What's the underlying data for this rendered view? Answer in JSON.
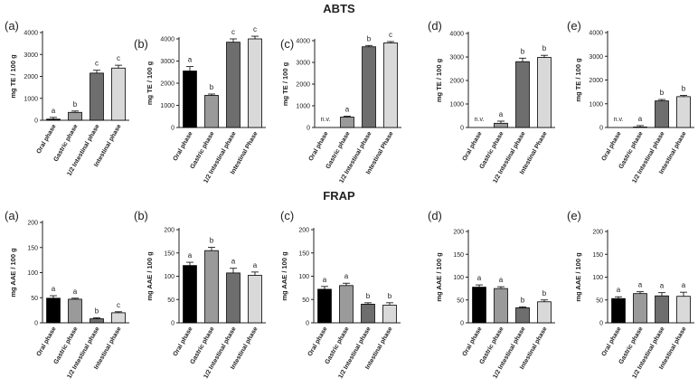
{
  "sections": {
    "abts_title": "ABTS",
    "frap_title": "FRAP"
  },
  "colors": {
    "oral": "#000000",
    "gastric": "#9a9a9a",
    "half_intestinal": "#6e6e6e",
    "intestinal": "#d9d9d9",
    "axis": "#222222"
  },
  "chart_data": [
    {
      "type": "bar",
      "section": "ABTS",
      "panel": "(a)",
      "ylabel": "mg TE / 100 g",
      "ylim": [
        0,
        4000
      ],
      "yticks": [
        0,
        1000,
        2000,
        3000,
        4000
      ],
      "categories": [
        "Oral phase",
        "Gastric phase",
        "1/2 Intestinal phase",
        "Intestinal phase"
      ],
      "values": [
        50,
        360,
        2150,
        2380
      ],
      "errors": [
        80,
        60,
        130,
        130
      ],
      "labels": [
        "a",
        "b",
        "c",
        "c"
      ],
      "missing": []
    },
    {
      "type": "bar",
      "section": "ABTS",
      "panel": "(b)",
      "ylabel": "mg TE / 100 g",
      "ylim": [
        0,
        4000
      ],
      "yticks": [
        0,
        1000,
        2000,
        3000,
        4000
      ],
      "categories": [
        "Oral phase",
        "Gastric phase",
        "1/2 Intestinal phase",
        "Intestinal Phase"
      ],
      "values": [
        2550,
        1450,
        3850,
        4000
      ],
      "errors": [
        200,
        60,
        150,
        120
      ],
      "labels": [
        "a",
        "b",
        "c",
        "c"
      ],
      "missing": []
    },
    {
      "type": "bar",
      "section": "ABTS",
      "panel": "(c)",
      "ylabel": "mg TE / 100 g",
      "ylim": [
        0,
        4000
      ],
      "yticks": [
        0,
        1000,
        2000,
        3000,
        4000
      ],
      "categories": [
        "Oral phase",
        "Gastric phase",
        "1/2 Intestinal phase",
        "Intestinal Phase"
      ],
      "values": [
        0,
        480,
        3720,
        3900
      ],
      "errors": [
        0,
        40,
        60,
        60
      ],
      "labels": [
        "n.v.",
        "a",
        "b",
        "c"
      ],
      "missing": [
        0
      ]
    },
    {
      "type": "bar",
      "section": "ABTS",
      "panel": "(d)",
      "ylabel": "mg TE / 100 g",
      "ylim": [
        0,
        4000
      ],
      "yticks": [
        0,
        1000,
        2000,
        3000,
        4000
      ],
      "categories": [
        "Oral phase",
        "Gastric phase",
        "1/2 Intestinal phase",
        "Intestinal Phase"
      ],
      "values": [
        0,
        180,
        2800,
        2980
      ],
      "errors": [
        0,
        90,
        150,
        90
      ],
      "labels": [
        "n.v.",
        "a",
        "b",
        "b"
      ],
      "missing": [
        0
      ]
    },
    {
      "type": "bar",
      "section": "ABTS",
      "panel": "(e)",
      "ylabel": "mg TE / 100 g",
      "ylim": [
        0,
        4000
      ],
      "yticks": [
        0,
        1000,
        2000,
        3000,
        4000
      ],
      "categories": [
        "Oral phase",
        "Gastric phase",
        "1/2 Intestinal phase",
        "Intestinal phase"
      ],
      "values": [
        0,
        20,
        1120,
        1300
      ],
      "errors": [
        0,
        60,
        60,
        50
      ],
      "labels": [
        "n.v.",
        "a",
        "b",
        "b"
      ],
      "missing": [
        0
      ]
    },
    {
      "type": "bar",
      "section": "FRAP",
      "panel": "(a)",
      "ylabel": "mg AAE / 100 g",
      "ylim": [
        0,
        200
      ],
      "yticks": [
        0,
        50,
        100,
        150,
        200
      ],
      "categories": [
        "Oral phase",
        "Gastric phase",
        "1/2 Intestinal phase",
        "Intestinal phase"
      ],
      "values": [
        49,
        47,
        8,
        20
      ],
      "errors": [
        5,
        2,
        2,
        2
      ],
      "labels": [
        "a",
        "a",
        "b",
        "c"
      ],
      "missing": []
    },
    {
      "type": "bar",
      "section": "FRAP",
      "panel": "(b)",
      "ylabel": "mg AAE / 100 g",
      "ylim": [
        0,
        200
      ],
      "yticks": [
        0,
        50,
        100,
        150,
        200
      ],
      "categories": [
        "Oral phase",
        "Gastric phase",
        "1/2 Intestinal phase",
        "Intestinal phase"
      ],
      "values": [
        123,
        155,
        107,
        102
      ],
      "errors": [
        7,
        7,
        10,
        7
      ],
      "labels": [
        "a",
        "b",
        "a",
        "a"
      ],
      "missing": []
    },
    {
      "type": "bar",
      "section": "FRAP",
      "panel": "(c)",
      "ylabel": "mg AAE / 100 g",
      "ylim": [
        0,
        200
      ],
      "yticks": [
        0,
        50,
        100,
        150,
        200
      ],
      "categories": [
        "Oral phase",
        "Gastric phase",
        "1/2 Intestinal phase",
        "Intestinal phase"
      ],
      "values": [
        72,
        80,
        40,
        38
      ],
      "errors": [
        6,
        5,
        3,
        5
      ],
      "labels": [
        "a",
        "a",
        "b",
        "b"
      ],
      "missing": []
    },
    {
      "type": "bar",
      "section": "FRAP",
      "panel": "(d)",
      "ylabel": "mg AAE / 100 g",
      "ylim": [
        0,
        200
      ],
      "yticks": [
        0,
        50,
        100,
        150,
        200
      ],
      "categories": [
        "Oral phase",
        "Gastric phase",
        "1/2 Intestinal phase",
        "Intestinal phase"
      ],
      "values": [
        78,
        75,
        33,
        46
      ],
      "errors": [
        5,
        4,
        2,
        4
      ],
      "labels": [
        "a",
        "a",
        "b",
        "b"
      ],
      "missing": []
    },
    {
      "type": "bar",
      "section": "FRAP",
      "panel": "(e)",
      "ylabel": "mg AAE / 100 g",
      "ylim": [
        0,
        200
      ],
      "yticks": [
        0,
        50,
        100,
        150,
        200
      ],
      "categories": [
        "Oral phase",
        "Gastric phase",
        "1/2 Intestinal phase",
        "Intestinal phase"
      ],
      "values": [
        53,
        64,
        59,
        58
      ],
      "errors": [
        4,
        4,
        7,
        9
      ],
      "labels": [
        "a",
        "a",
        "a",
        "a"
      ],
      "missing": []
    }
  ]
}
